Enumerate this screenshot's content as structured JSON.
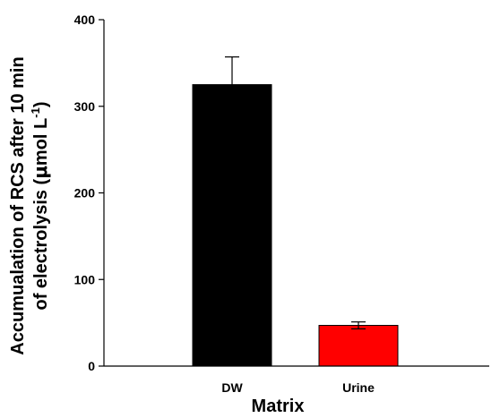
{
  "chart_data": {
    "type": "bar",
    "title": "",
    "xlabel": "Matrix",
    "ylabel": {
      "line1": "Accumualation of RCS after 10 min",
      "line2_prefix": "of electrolysis (",
      "line2_mu": "μ",
      "line2_unit": "mol L",
      "line2_exp": "-1",
      "line2_suffix": ")"
    },
    "categories": [
      "DW",
      "Urine"
    ],
    "values": [
      325,
      47
    ],
    "errors": [
      32,
      4
    ],
    "colors": [
      "#000000",
      "#ff0000"
    ],
    "ylim": [
      0,
      400
    ],
    "yticks": [
      0,
      100,
      200,
      300,
      400
    ],
    "grid": false,
    "legend": "none"
  }
}
